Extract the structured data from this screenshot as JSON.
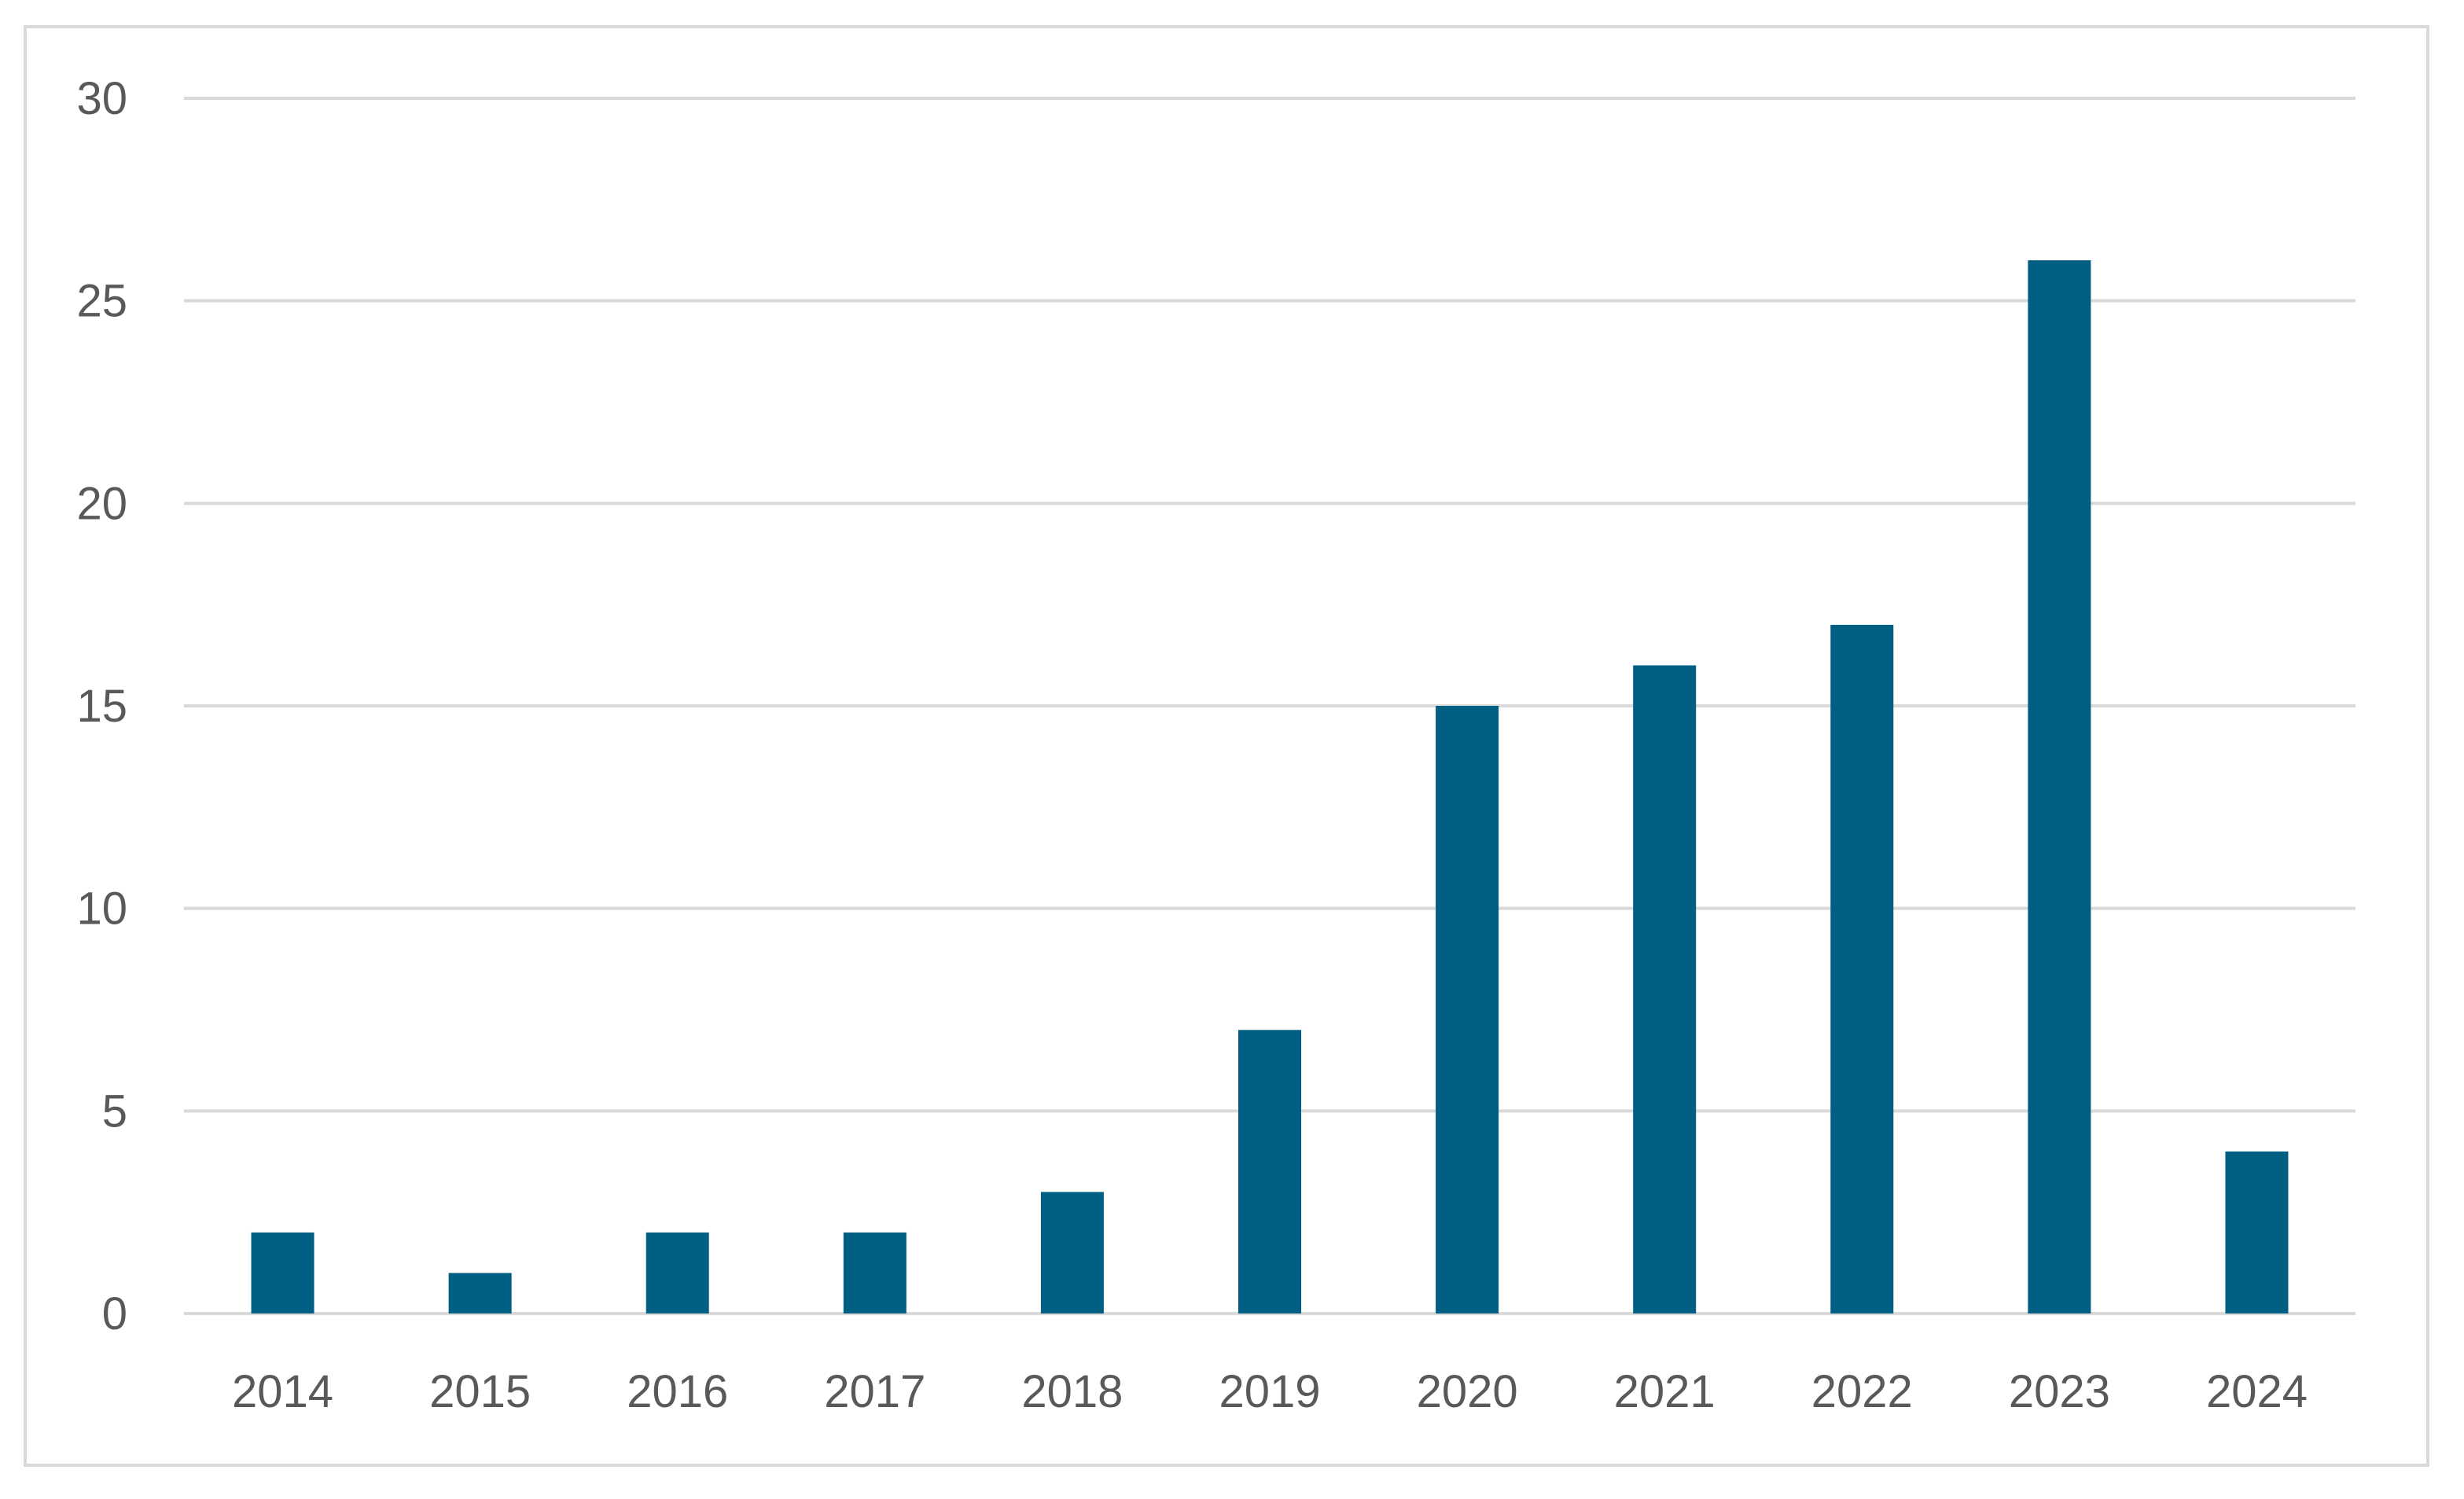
{
  "chart_data": {
    "type": "bar",
    "categories": [
      "2014",
      "2015",
      "2016",
      "2017",
      "2018",
      "2019",
      "2020",
      "2021",
      "2022",
      "2023",
      "2024"
    ],
    "values": [
      2,
      1,
      2,
      2,
      3,
      7,
      15,
      16,
      17,
      26,
      4
    ],
    "ylim": [
      0,
      30
    ],
    "yticks": [
      0,
      5,
      10,
      15,
      20,
      25,
      30
    ],
    "ytick_labels": [
      "0",
      "5",
      "10",
      "15",
      "20",
      "25",
      "30"
    ],
    "grid": true,
    "legend": "none",
    "bar_color": "#005f83"
  }
}
